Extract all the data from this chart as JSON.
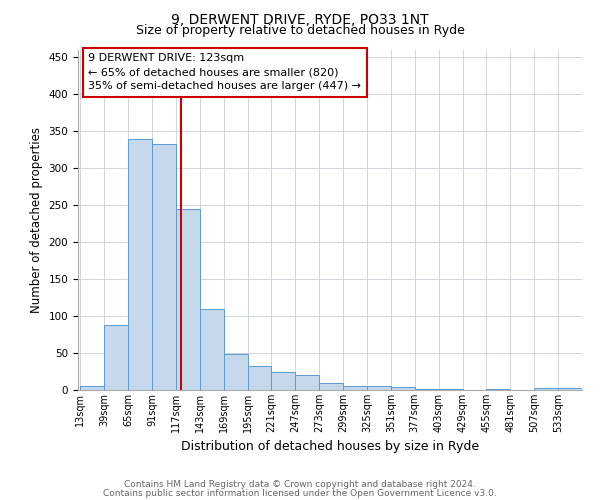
{
  "title1": "9, DERWENT DRIVE, RYDE, PO33 1NT",
  "title2": "Size of property relative to detached houses in Ryde",
  "xlabel": "Distribution of detached houses by size in Ryde",
  "ylabel": "Number of detached properties",
  "footnote1": "Contains HM Land Registry data © Crown copyright and database right 2024.",
  "footnote2": "Contains public sector information licensed under the Open Government Licence v3.0.",
  "annotation_line1": "9 DERWENT DRIVE: 123sqm",
  "annotation_line2": "← 65% of detached houses are smaller (820)",
  "annotation_line3": "35% of semi-detached houses are larger (447) →",
  "bar_color": "#c6d9ec",
  "bar_edge_color": "#5b9bd5",
  "vline_color": "#cc0000",
  "categories": [
    "13sqm",
    "39sqm",
    "65sqm",
    "91sqm",
    "117sqm",
    "143sqm",
    "169sqm",
    "195sqm",
    "221sqm",
    "247sqm",
    "273sqm",
    "299sqm",
    "325sqm",
    "351sqm",
    "377sqm",
    "403sqm",
    "429sqm",
    "455sqm",
    "481sqm",
    "507sqm",
    "533sqm"
  ],
  "bar_heights": [
    6,
    88,
    340,
    333,
    245,
    109,
    49,
    32,
    25,
    20,
    10,
    5,
    5,
    4,
    2,
    1,
    0,
    2,
    0,
    3,
    3
  ],
  "vline_pos": 4,
  "ylim": [
    0,
    460
  ],
  "yticks": [
    0,
    50,
    100,
    150,
    200,
    250,
    300,
    350,
    400,
    450
  ],
  "fig_bg": "#ffffff",
  "grid_color": "#c8d0d8",
  "title1_fontsize": 10,
  "title2_fontsize": 9,
  "tick_fontsize": 7,
  "ylabel_fontsize": 8.5,
  "xlabel_fontsize": 9,
  "footnote_fontsize": 6.5,
  "ann_fontsize": 8
}
